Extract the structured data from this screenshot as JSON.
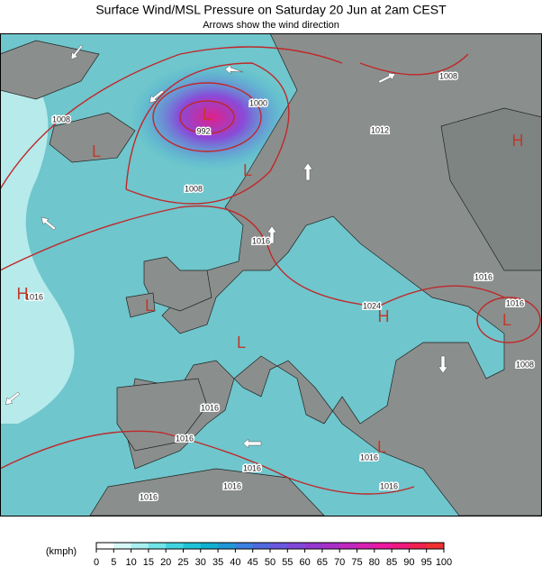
{
  "header": {
    "title": "Surface Wind/MSL Pressure on Saturday 20 Jun at 2am CEST",
    "subtitle": "Arrows show the wind direction"
  },
  "map": {
    "isobar_labels": [
      "1008",
      "992",
      "1000",
      "1008",
      "1016",
      "1016",
      "1024",
      "1016",
      "1016",
      "1008",
      "1016",
      "1016",
      "1016",
      "1016",
      "1016",
      "1016",
      "1016",
      "1008",
      "1012"
    ],
    "pressure_centers": [
      "L",
      "L",
      "L",
      "H",
      "L",
      "H",
      "L",
      "L",
      "H",
      "L"
    ]
  },
  "legend": {
    "unit": "(kmph)",
    "ticks": [
      0,
      5,
      10,
      15,
      20,
      25,
      30,
      35,
      40,
      45,
      50,
      55,
      60,
      65,
      70,
      75,
      80,
      85,
      90,
      95,
      100
    ],
    "colors": [
      "#ffffff",
      "#d8f8f8",
      "#a8f0f0",
      "#70e4e8",
      "#40d4e0",
      "#20c4d8",
      "#10b0d0",
      "#2098d8",
      "#3a80e0",
      "#5068e0",
      "#6a58e0",
      "#8048d8",
      "#9438d0",
      "#a830c8",
      "#c028c0",
      "#d820b0",
      "#ec18a0",
      "#f01880",
      "#f02050",
      "#f03030"
    ]
  }
}
